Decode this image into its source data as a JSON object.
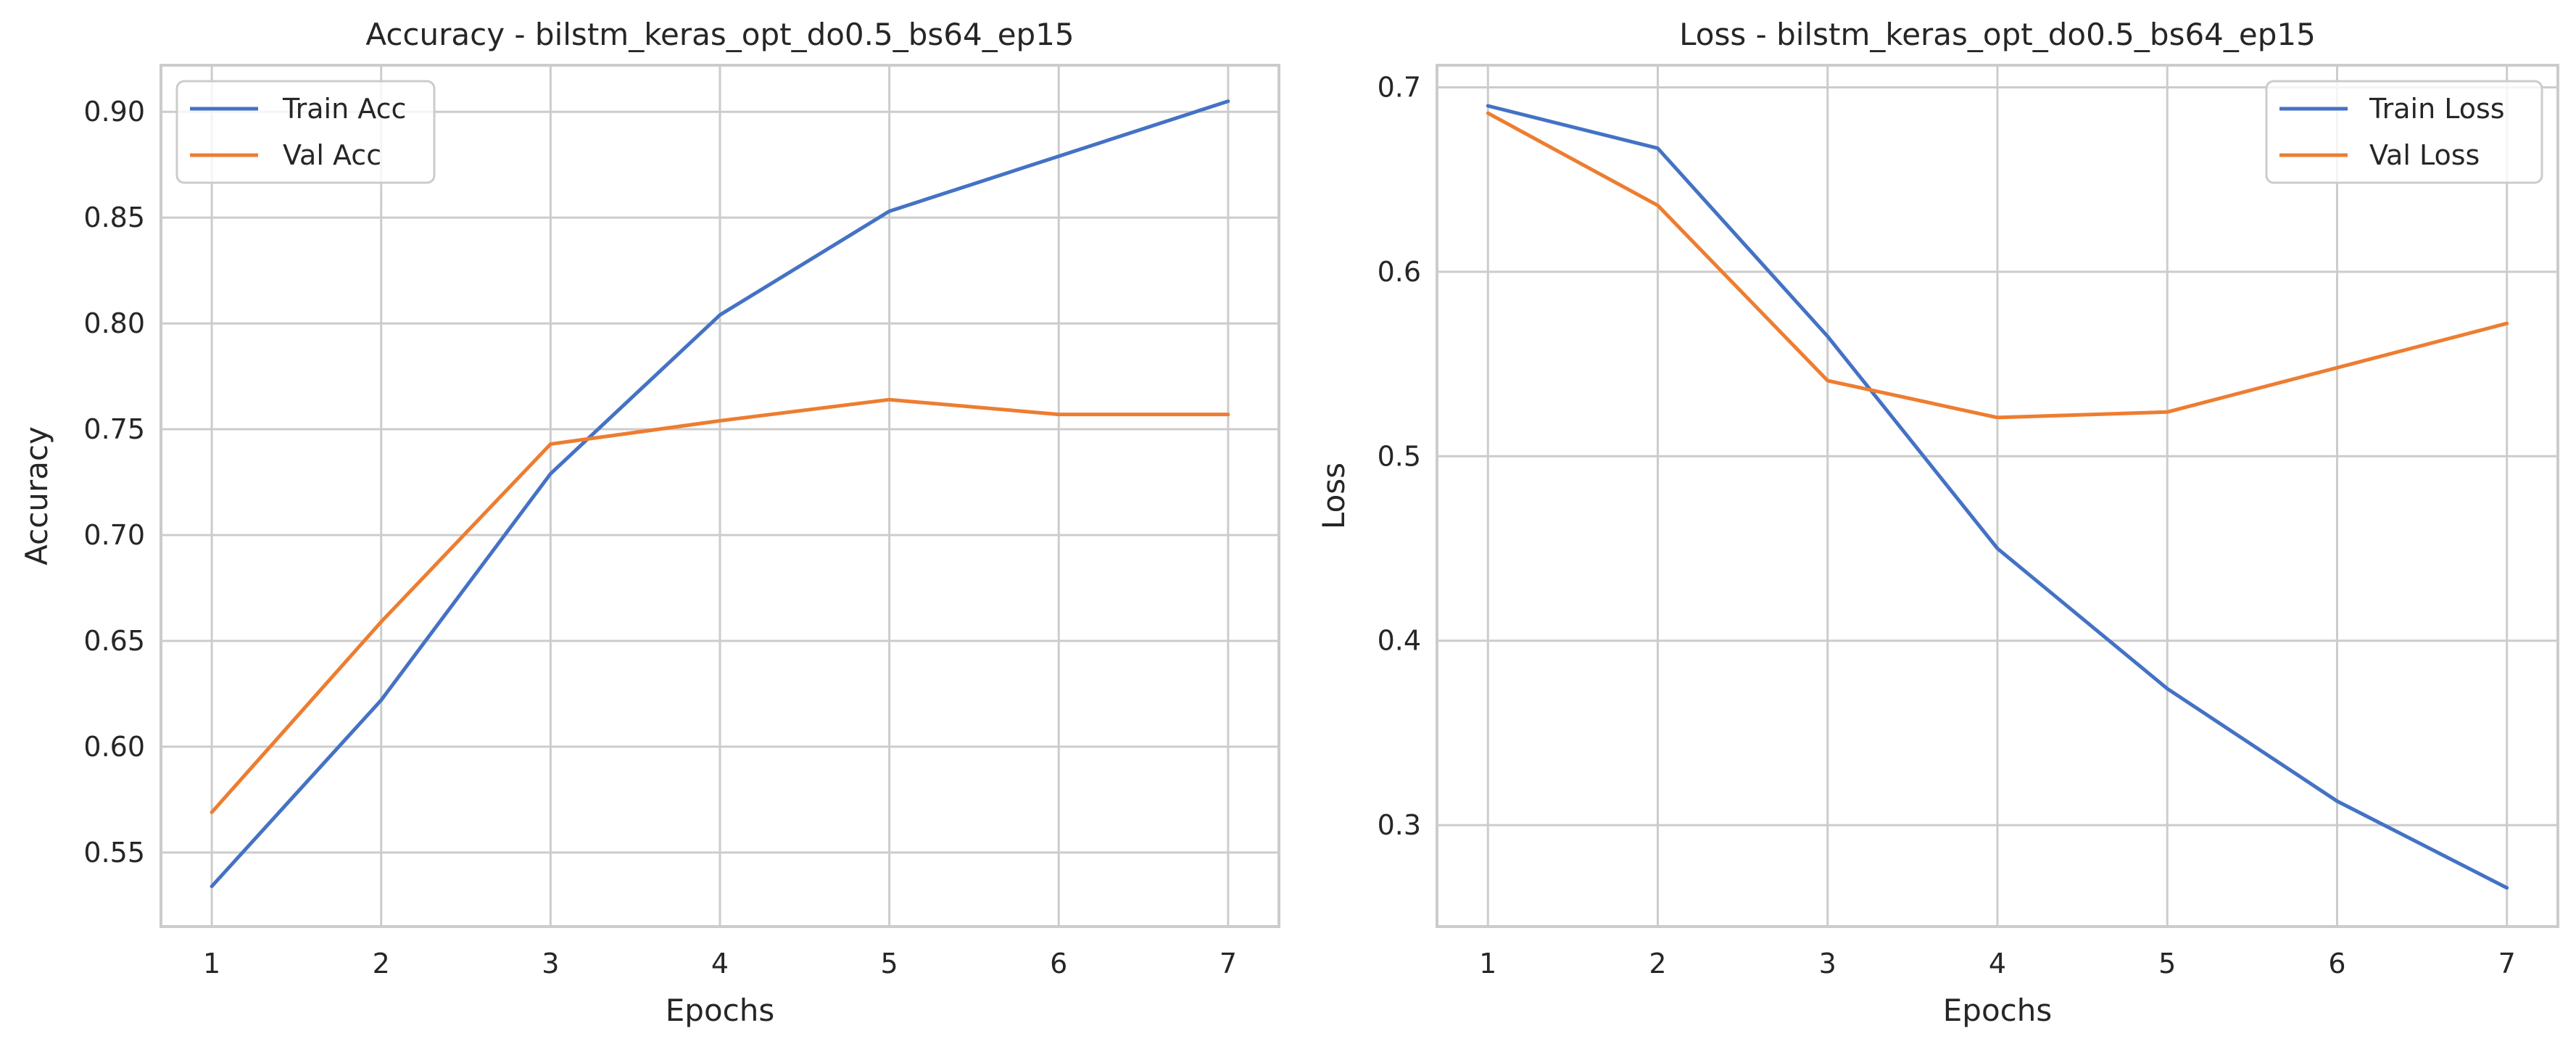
{
  "colors": {
    "train": "#4472c4",
    "val": "#ed7d31",
    "grid": "#cccccc",
    "text": "#262626"
  },
  "chart_data": [
    {
      "type": "line",
      "title": "Accuracy - bilstm_keras_opt_do0.5_bs64_ep15",
      "xlabel": "Epochs",
      "ylabel": "Accuracy",
      "x": [
        1,
        2,
        3,
        4,
        5,
        6,
        7
      ],
      "xlim": [
        0.7,
        7.3
      ],
      "ylim": [
        0.515,
        0.922
      ],
      "xticks": [
        "1",
        "2",
        "3",
        "4",
        "5",
        "6",
        "7"
      ],
      "yticks": [
        "0.55",
        "0.60",
        "0.65",
        "0.70",
        "0.75",
        "0.80",
        "0.85",
        "0.90"
      ],
      "grid": true,
      "legend_position": "upper-left",
      "series": [
        {
          "name": "Train Acc",
          "color": "#4472c4",
          "values": [
            0.534,
            0.622,
            0.729,
            0.804,
            0.853,
            0.879,
            0.905
          ]
        },
        {
          "name": "Val Acc",
          "color": "#ed7d31",
          "values": [
            0.569,
            0.659,
            0.743,
            0.754,
            0.764,
            0.757,
            0.757
          ]
        }
      ]
    },
    {
      "type": "line",
      "title": "Loss - bilstm_keras_opt_do0.5_bs64_ep15",
      "xlabel": "Epochs",
      "ylabel": "Loss",
      "x": [
        1,
        2,
        3,
        4,
        5,
        6,
        7
      ],
      "xlim": [
        0.7,
        7.3
      ],
      "ylim": [
        0.245,
        0.712
      ],
      "xticks": [
        "1",
        "2",
        "3",
        "4",
        "5",
        "6",
        "7"
      ],
      "yticks": [
        "0.3",
        "0.4",
        "0.5",
        "0.6",
        "0.7"
      ],
      "grid": true,
      "legend_position": "upper-right",
      "series": [
        {
          "name": "Train Loss",
          "color": "#4472c4",
          "values": [
            0.69,
            0.667,
            0.565,
            0.45,
            0.374,
            0.313,
            0.266
          ]
        },
        {
          "name": "Val Loss",
          "color": "#ed7d31",
          "values": [
            0.686,
            0.636,
            0.541,
            0.521,
            0.524,
            0.548,
            0.572
          ]
        }
      ]
    }
  ]
}
